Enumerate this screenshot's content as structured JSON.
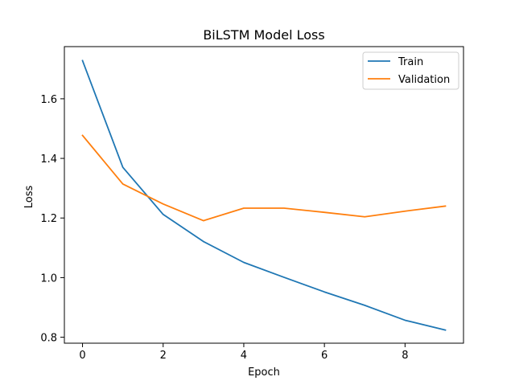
{
  "chart_data": {
    "type": "line",
    "title": "BiLSTM Model Loss",
    "xlabel": "Epoch",
    "ylabel": "Loss",
    "xlim": [
      -0.45,
      9.45
    ],
    "ylim": [
      0.78,
      1.775
    ],
    "xticks": [
      0,
      2,
      4,
      6,
      8
    ],
    "yticks": [
      0.8,
      1.0,
      1.2,
      1.4,
      1.6
    ],
    "xtick_labels": [
      "0",
      "2",
      "4",
      "6",
      "8"
    ],
    "ytick_labels": [
      "0.8",
      "1.0",
      "1.2",
      "1.4",
      "1.6"
    ],
    "grid": false,
    "legend_position": "top-right",
    "x": [
      0,
      1,
      2,
      3,
      4,
      5,
      6,
      7,
      8,
      9
    ],
    "series": [
      {
        "name": "Train",
        "color": "#1f77b4",
        "values": [
          1.728,
          1.37,
          1.212,
          1.121,
          1.051,
          1.001,
          0.952,
          0.907,
          0.857,
          0.824
        ]
      },
      {
        "name": "Validation",
        "color": "#ff7f0e",
        "values": [
          1.477,
          1.314,
          1.247,
          1.191,
          1.233,
          1.233,
          1.219,
          1.204,
          1.223,
          1.24
        ]
      }
    ]
  }
}
